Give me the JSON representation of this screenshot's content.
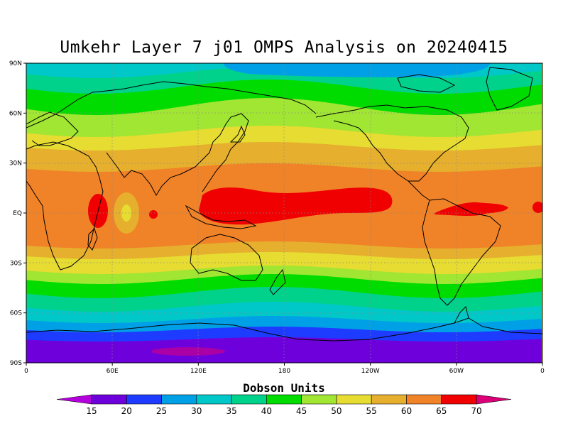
{
  "title": "Umkehr Layer 7 j01 OMPS Analysis on 20240415",
  "map": {
    "lat_ticks": [
      "90N",
      "60N",
      "30N",
      "EQ",
      "30S",
      "60S",
      "90S"
    ],
    "lon_ticks": [
      "0",
      "60E",
      "120E",
      "180",
      "120W",
      "60W",
      "0"
    ],
    "lat_range": [
      -90,
      90
    ],
    "lon_range": [
      0,
      360
    ]
  },
  "colorbar": {
    "title": "Dobson Units",
    "levels": [
      "15",
      "20",
      "25",
      "30",
      "35",
      "40",
      "45",
      "50",
      "55",
      "60",
      "65",
      "70"
    ],
    "colors": [
      "#b400dc",
      "#6e00dc",
      "#1e3cff",
      "#00a0e6",
      "#00c8c8",
      "#00d28c",
      "#00dc00",
      "#a0e632",
      "#e6dc32",
      "#e6af2d",
      "#f08228",
      "#f00000",
      "#dc0078"
    ]
  }
}
